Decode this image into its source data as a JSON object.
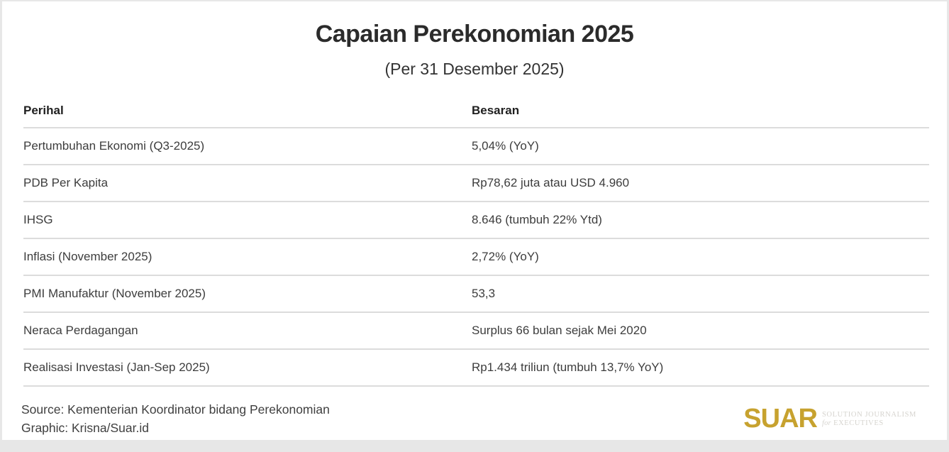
{
  "header": {
    "title": "Capaian Perekonomian 2025",
    "subtitle": "(Per 31 Desember 2025)"
  },
  "table": {
    "columns": [
      "Perihal",
      "Besaran"
    ],
    "rows": [
      {
        "perihal": "Pertumbuhan Ekonomi (Q3-2025)",
        "besaran": "5,04% (YoY)"
      },
      {
        "perihal": "PDB Per Kapita",
        "besaran": "Rp78,62 juta atau USD 4.960"
      },
      {
        "perihal": "IHSG",
        "besaran": "8.646 (tumbuh 22% Ytd)"
      },
      {
        "perihal": "Inflasi (November 2025)",
        "besaran": "2,72% (YoY)"
      },
      {
        "perihal": "PMI Manufaktur (November 2025)",
        "besaran": "53,3"
      },
      {
        "perihal": "Neraca Perdagangan",
        "besaran": "Surplus 66 bulan sejak Mei 2020"
      },
      {
        "perihal": "Realisasi Investasi (Jan-Sep 2025)",
        "besaran": "Rp1.434 triliun (tumbuh 13,7% YoY)"
      }
    ]
  },
  "footer": {
    "source": "Source: Kementerian Koordinator bidang Perekonomian",
    "graphic": "Graphic: Krisna/Suar.id"
  },
  "logo": {
    "wordmark": "SUAR",
    "tagline_line1": "SOLUTION JOURNALISM",
    "tagline_line2_prefix": "for",
    "tagline_line2": "EXECUTIVES"
  },
  "colors": {
    "background": "#e7e7e7",
    "card": "#ffffff",
    "divider": "#dcdcdc",
    "title_text": "#2b2b2b",
    "body_text": "#3d3d3d",
    "logo_gold": "#C7A22F",
    "tagline_gray": "#d6d4cf"
  },
  "chart_data": {
    "type": "table",
    "title": "Capaian Perekonomian 2025",
    "subtitle": "(Per 31 Desember 2025)",
    "columns": [
      "Perihal",
      "Besaran"
    ],
    "rows": [
      [
        "Pertumbuhan Ekonomi (Q3-2025)",
        "5,04% (YoY)"
      ],
      [
        "PDB Per Kapita",
        "Rp78,62 juta atau USD 4.960"
      ],
      [
        "IHSG",
        "8.646 (tumbuh 22% Ytd)"
      ],
      [
        "Inflasi (November 2025)",
        "2,72% (YoY)"
      ],
      [
        "PMI Manufaktur (November 2025)",
        "53,3"
      ],
      [
        "Neraca Perdagangan",
        "Surplus 66 bulan sejak Mei 2020"
      ],
      [
        "Realisasi Investasi (Jan-Sep 2025)",
        "Rp1.434 triliun (tumbuh 13,7% YoY)"
      ]
    ]
  }
}
